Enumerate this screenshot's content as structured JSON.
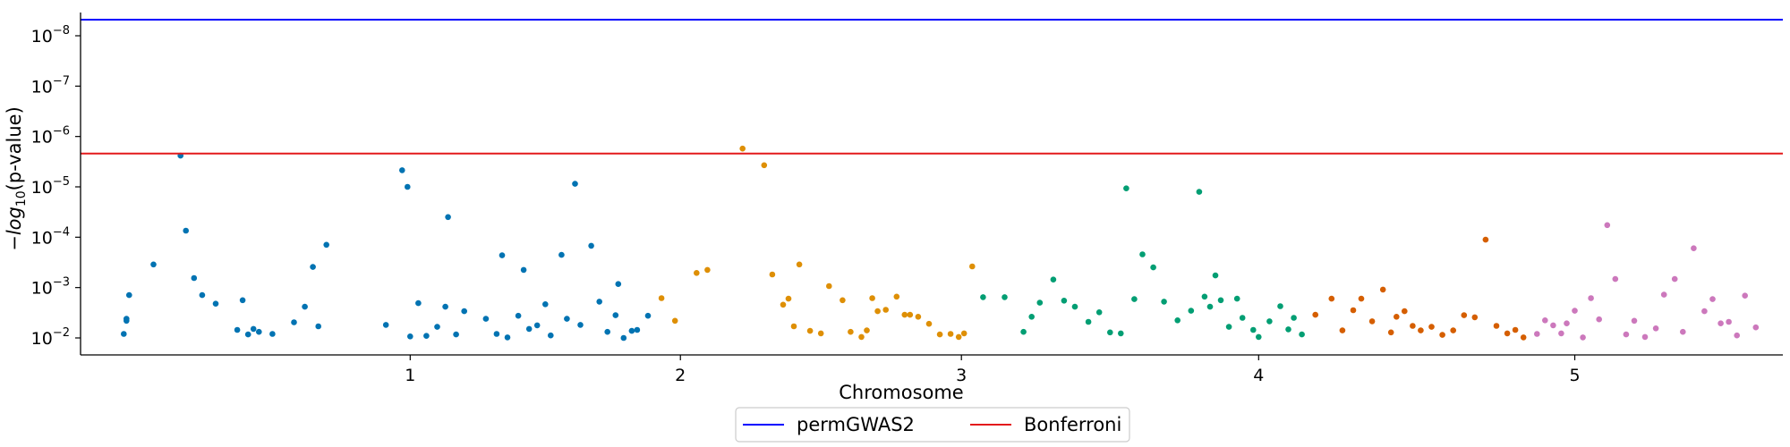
{
  "chart_data": {
    "type": "scatter",
    "title": "",
    "xlabel": "Chromosome",
    "ylabel": "−log10(p-value)",
    "ylabel_parts": {
      "prefix": "−",
      "fn": "log",
      "sub": "10",
      "suffix": "(p-value)"
    },
    "y_scale": "-log10",
    "xlim": [
      0,
      63
    ],
    "ylim": [
      1.65,
      8.32
    ],
    "xtick_positions": [
      12.2,
      22.2,
      32.6,
      43.6,
      55.3
    ],
    "xtick_labels": [
      "1",
      "2",
      "3",
      "4",
      "5"
    ],
    "yticks": [
      {
        "value": 2,
        "base": "10",
        "exp": "−2"
      },
      {
        "value": 3,
        "base": "10",
        "exp": "−3"
      },
      {
        "value": 4,
        "base": "10",
        "exp": "−4"
      },
      {
        "value": 5,
        "base": "10",
        "exp": "−5"
      },
      {
        "value": 6,
        "base": "10",
        "exp": "−6"
      },
      {
        "value": 7,
        "base": "10",
        "exp": "−7"
      },
      {
        "value": 8,
        "base": "10",
        "exp": "−8"
      }
    ],
    "grid": false,
    "legend_position": "bottom-center",
    "thresholds": [
      {
        "name": "permGWAS2",
        "value": 8.32,
        "color": "#0000ff"
      },
      {
        "name": "Bonferroni",
        "value": 5.66,
        "color": "#e31a1c"
      }
    ],
    "series": [
      {
        "chromosome": "1",
        "color": "#0173b2",
        "x": [
          1.6,
          1.7,
          1.7,
          1.8,
          2.7,
          3.7,
          3.9,
          4.2,
          4.5,
          5.0,
          5.8,
          6.0,
          6.2,
          6.4,
          6.6,
          7.1,
          7.9,
          8.3,
          8.6,
          8.8,
          9.1,
          11.3,
          11.9,
          12.1,
          12.2,
          12.5,
          12.8,
          13.2,
          13.5,
          13.6,
          13.9,
          14.2,
          15.0,
          15.4,
          15.6,
          15.8,
          16.2,
          16.4,
          16.6,
          16.9,
          17.2,
          17.4,
          17.8,
          18.0,
          18.3,
          18.5,
          18.9,
          19.2,
          19.5,
          19.8,
          19.9,
          20.1,
          20.4,
          20.6,
          21.0
        ],
        "y": [
          2.08,
          2.34,
          2.38,
          2.85,
          3.46,
          5.62,
          4.13,
          3.19,
          2.85,
          2.68,
          2.16,
          2.75,
          2.07,
          2.18,
          2.12,
          2.08,
          2.31,
          2.62,
          3.41,
          2.23,
          3.85,
          2.26,
          5.33,
          5.0,
          2.03,
          2.69,
          2.04,
          2.22,
          2.62,
          4.4,
          2.07,
          2.53,
          2.38,
          2.08,
          3.64,
          2.01,
          2.44,
          3.35,
          2.18,
          2.25,
          2.67,
          2.05,
          3.65,
          2.38,
          5.06,
          2.26,
          3.83,
          2.72,
          2.12,
          2.45,
          3.07,
          2.0,
          2.14,
          2.16,
          2.44
        ]
      },
      {
        "chromosome": "2",
        "color": "#de8f05",
        "x": [
          21.5,
          22.0,
          22.8,
          23.2,
          24.5,
          25.3,
          25.6,
          26.0,
          26.2,
          26.4,
          26.6,
          27.0,
          27.4,
          27.7,
          28.2,
          28.5,
          28.9,
          29.1,
          29.3,
          29.5,
          29.8,
          30.2,
          30.5,
          30.7,
          31.0,
          31.4,
          31.8,
          32.2,
          32.5,
          32.7,
          33.0
        ],
        "y": [
          2.79,
          2.34,
          3.29,
          3.35,
          5.76,
          5.43,
          3.26,
          2.66,
          2.78,
          2.23,
          3.46,
          2.14,
          2.09,
          3.03,
          2.75,
          2.12,
          2.02,
          2.15,
          2.79,
          2.53,
          2.56,
          2.82,
          2.46,
          2.46,
          2.42,
          2.28,
          2.07,
          2.08,
          2.02,
          2.09,
          3.42
        ]
      },
      {
        "chromosome": "3",
        "color": "#029e73",
        "x": [
          33.4,
          34.2,
          34.9,
          35.2,
          35.5,
          36.0,
          36.4,
          36.8,
          37.3,
          37.7,
          38.1,
          38.5,
          38.7,
          39.0,
          39.3,
          39.7,
          40.1,
          40.6,
          41.1,
          41.4,
          41.6,
          41.8,
          42.0,
          42.2,
          42.5,
          42.8,
          43.0,
          43.4,
          43.6,
          44.0,
          44.4,
          44.7,
          44.9,
          45.2
        ],
        "y": [
          2.81,
          2.81,
          2.12,
          2.42,
          2.7,
          3.16,
          2.74,
          2.62,
          2.32,
          2.51,
          2.11,
          2.09,
          4.97,
          2.77,
          3.66,
          3.4,
          2.72,
          2.35,
          2.54,
          4.9,
          2.82,
          2.62,
          3.24,
          2.75,
          2.22,
          2.78,
          2.4,
          2.16,
          2.02,
          2.33,
          2.63,
          2.17,
          2.4,
          2.07
        ]
      },
      {
        "chromosome": "4",
        "color": "#d55e00",
        "x": [
          45.7,
          46.3,
          46.7,
          47.1,
          47.4,
          47.8,
          48.2,
          48.5,
          48.7,
          49.0,
          49.3,
          49.6,
          50.0,
          50.4,
          50.8,
          51.2,
          51.6,
          52.0,
          52.4,
          52.8,
          53.1,
          53.4
        ],
        "y": [
          2.46,
          2.78,
          2.15,
          2.55,
          2.78,
          2.33,
          2.96,
          2.11,
          2.42,
          2.53,
          2.24,
          2.15,
          2.22,
          2.06,
          2.15,
          2.45,
          2.41,
          3.95,
          2.24,
          2.09,
          2.16,
          2.01
        ]
      },
      {
        "chromosome": "5",
        "color": "#cc78bc",
        "x": [
          53.9,
          54.2,
          54.5,
          54.8,
          55.0,
          55.3,
          55.6,
          55.9,
          56.2,
          56.5,
          56.8,
          57.2,
          57.5,
          57.9,
          58.3,
          58.6,
          59.0,
          59.3,
          59.7,
          60.1,
          60.4,
          60.7,
          61.0,
          61.3,
          61.6,
          62.0
        ],
        "y": [
          2.08,
          2.35,
          2.25,
          2.09,
          2.29,
          2.54,
          2.01,
          2.79,
          2.37,
          4.24,
          3.17,
          2.07,
          2.34,
          2.02,
          2.19,
          2.86,
          3.17,
          2.12,
          3.78,
          2.53,
          2.77,
          2.29,
          2.32,
          2.05,
          2.84,
          2.21
        ]
      }
    ]
  }
}
